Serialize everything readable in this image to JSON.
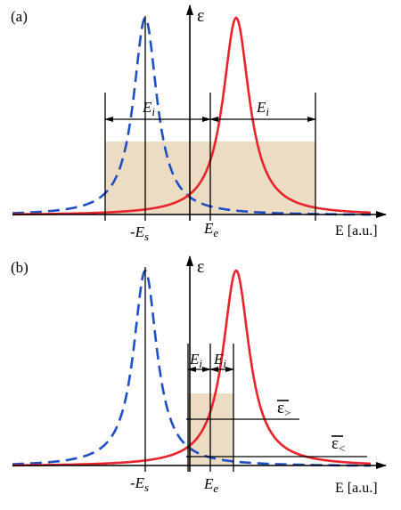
{
  "panels": [
    {
      "label": "(a)",
      "axis_symbol": "ε",
      "axis_caption": "E [a.u.]",
      "marker_left": "-E",
      "marker_left_sub": "s",
      "marker_right": "E",
      "marker_right_sub": "e",
      "interval_left": "E",
      "interval_left_sub": "i",
      "interval_right": "E",
      "interval_right_sub": "i"
    },
    {
      "label": "(b)",
      "axis_symbol": "ε",
      "axis_caption": "E [a.u.]",
      "marker_left": "-E",
      "marker_left_sub": "s",
      "marker_right": "E",
      "marker_right_sub": "e",
      "interval_left": "E",
      "interval_left_sub": "i",
      "interval_right": "E",
      "interval_right_sub": "i",
      "upper_level": "ε",
      "upper_level_sub": ">",
      "lower_level": "ε",
      "lower_level_sub": "<"
    }
  ],
  "colors": {
    "red_curve": "#e8232b",
    "blue_curve": "#1f4fc4",
    "shade": "#ecdcc4",
    "axis": "#000000"
  }
}
